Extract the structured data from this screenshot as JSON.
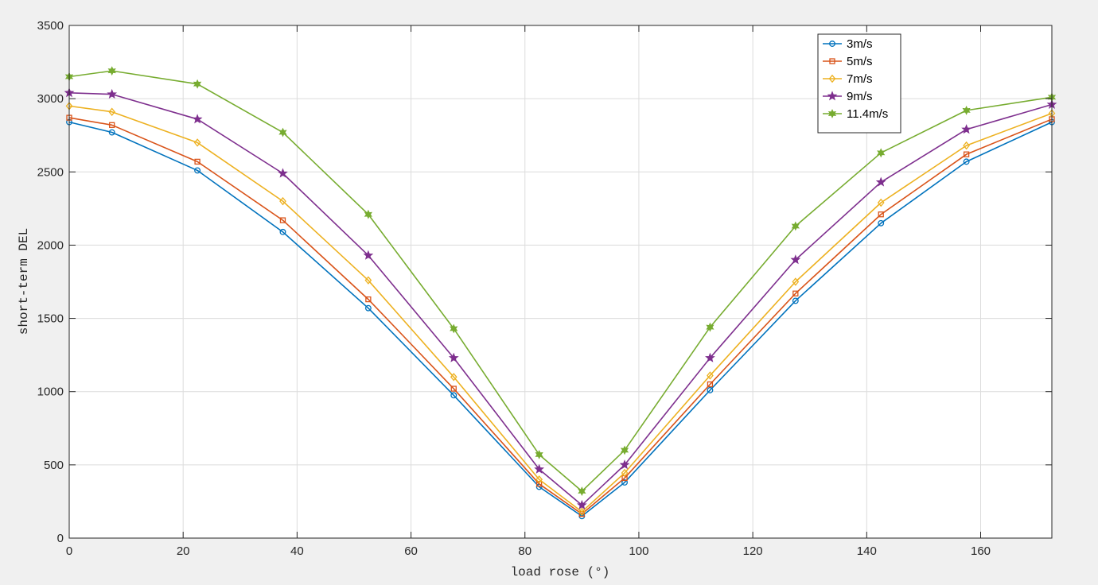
{
  "chart_data": {
    "type": "line",
    "title": "",
    "xlabel": "load rose (°)",
    "ylabel": "short-term DEL",
    "xlim": [
      0,
      172.5
    ],
    "ylim": [
      0,
      3500
    ],
    "xticks": [
      0,
      20,
      40,
      60,
      80,
      100,
      120,
      140,
      160
    ],
    "yticks": [
      0,
      500,
      1000,
      1500,
      2000,
      2500,
      3000,
      3500
    ],
    "grid": true,
    "legend_position": "top-right",
    "x": [
      0,
      7.5,
      22.5,
      37.5,
      52.5,
      67.5,
      82.5,
      90,
      97.5,
      112.5,
      127.5,
      142.5,
      157.5,
      172.5
    ],
    "series": [
      {
        "name": "3m/s",
        "color": "#0072bd",
        "marker": "circle",
        "values": [
          2840,
          2770,
          2510,
          2090,
          1570,
          975,
          350,
          150,
          380,
          1010,
          1620,
          2150,
          2570,
          2840
        ]
      },
      {
        "name": "5m/s",
        "color": "#d95319",
        "marker": "square",
        "values": [
          2870,
          2820,
          2570,
          2170,
          1630,
          1020,
          370,
          165,
          410,
          1050,
          1670,
          2210,
          2620,
          2860
        ]
      },
      {
        "name": "7m/s",
        "color": "#edb120",
        "marker": "diamond",
        "values": [
          2950,
          2910,
          2700,
          2300,
          1760,
          1100,
          400,
          180,
          445,
          1110,
          1750,
          2290,
          2680,
          2900
        ]
      },
      {
        "name": "9m/s",
        "color": "#7e2f8e",
        "marker": "pentagram",
        "values": [
          3040,
          3030,
          2860,
          2490,
          1930,
          1230,
          470,
          225,
          500,
          1230,
          1900,
          2430,
          2790,
          2960
        ]
      },
      {
        "name": "11.4m/s",
        "color": "#77ac30",
        "marker": "hexagram",
        "values": [
          3150,
          3190,
          3100,
          2770,
          2210,
          1430,
          570,
          320,
          600,
          1440,
          2130,
          2630,
          2920,
          3010
        ]
      }
    ]
  }
}
